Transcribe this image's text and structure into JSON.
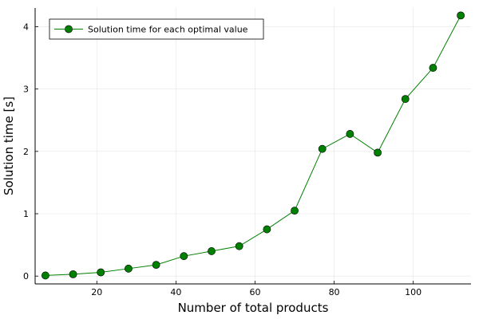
{
  "chart_data": {
    "type": "line",
    "title": "",
    "xlabel": "Number of total products",
    "ylabel": "Solution time [s]",
    "xlim": [
      4.4,
      114.6
    ],
    "ylim": [
      -0.1254,
      4.3
    ],
    "xticks": [
      20,
      40,
      60,
      80,
      100
    ],
    "yticks": [
      0,
      1,
      2,
      3,
      4
    ],
    "grid": true,
    "legend_position": "top-left",
    "series": [
      {
        "name": "Solution time for each optimal value",
        "color": "#008000",
        "marker": "circle",
        "x": [
          7,
          14,
          21,
          28,
          35,
          42,
          49,
          56,
          63,
          70,
          77,
          84,
          91,
          98,
          105,
          112
        ],
        "y": [
          0.01,
          0.03,
          0.06,
          0.12,
          0.18,
          0.32,
          0.4,
          0.48,
          0.75,
          1.05,
          2.04,
          2.28,
          1.98,
          2.84,
          3.34,
          4.18
        ]
      }
    ]
  }
}
